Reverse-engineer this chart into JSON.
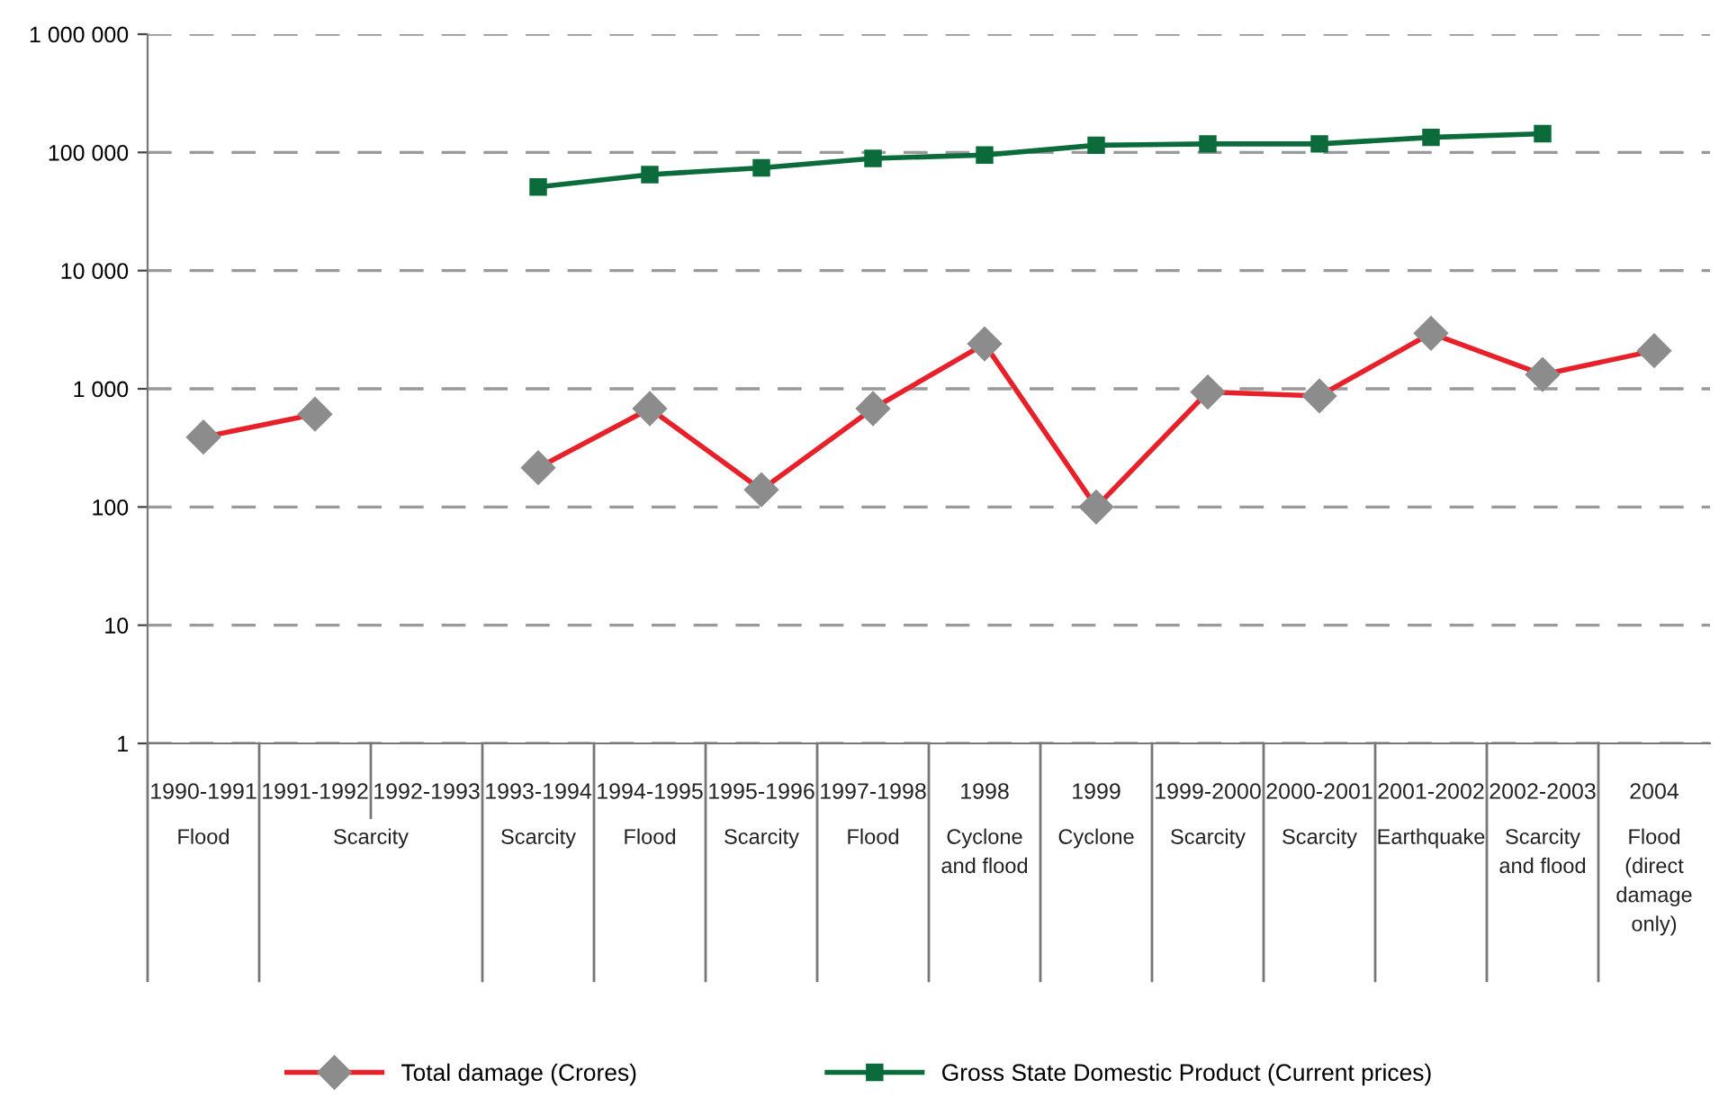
{
  "chart_data": {
    "type": "line",
    "categories": [
      "1990-1991",
      "1991-1992",
      "1992-1993",
      "1993-1994",
      "1994-1995",
      "1995-1996",
      "1997-1998",
      "1998",
      "1999",
      "1999-2000",
      "2000-2001",
      "2001-2002",
      "2002-2003",
      "2004"
    ],
    "series": [
      {
        "name": "Total damage (Crores)",
        "color": "#e8202a",
        "marker": "diamond",
        "values": [
          390,
          610,
          null,
          215,
          680,
          140,
          680,
          2400,
          100,
          940,
          870,
          2950,
          1320,
          2100
        ]
      },
      {
        "name": "Gross State Domestic Product (Current prices)",
        "color": "#0b6b3a",
        "marker": "square",
        "values": [
          null,
          null,
          null,
          51000,
          65000,
          74000,
          89000,
          95000,
          115000,
          118000,
          118000,
          134000,
          144000,
          null
        ]
      }
    ],
    "log": "y",
    "ylim": [
      1,
      1000000
    ],
    "yticks": [
      1,
      10,
      100,
      {
        "value": 1000,
        "label": "1 000"
      },
      {
        "value": 10000,
        "label": "10 000"
      },
      {
        "value": 100000,
        "label": "100 000"
      },
      {
        "value": 1000000,
        "label": "1 000 000"
      }
    ],
    "grid": "y",
    "legend": "bottom",
    "annotations": [
      "Flood",
      "Scarcity",
      null,
      "Scarcity",
      "Flood",
      "Scarcity",
      "Flood",
      "Cyclone\nand flood",
      "Cyclone",
      "Scarcity",
      "Scarcity",
      "Earthquake",
      "Scarcity\nand flood",
      "Flood\n(direct\ndamage\nonly)"
    ]
  }
}
